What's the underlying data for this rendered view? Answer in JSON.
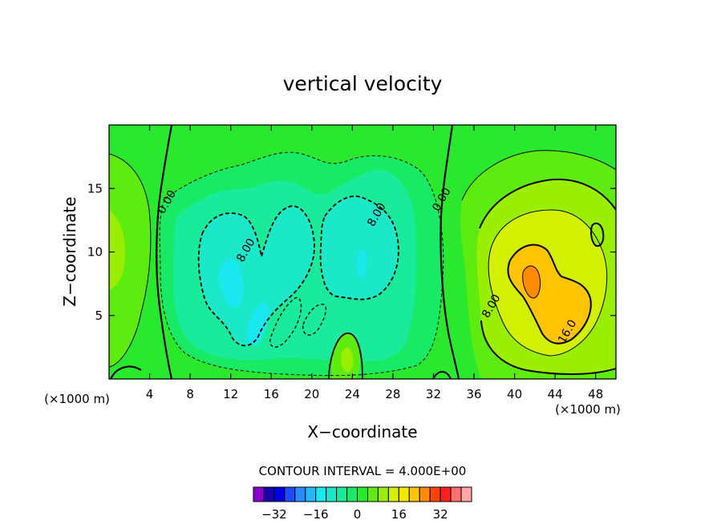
{
  "chart_data": {
    "type": "heatmap",
    "title": "vertical velocity",
    "xlabel": "X−coordinate",
    "ylabel": "Z−coordinate",
    "x_unit_left": "(×1000 m)",
    "x_unit_right": "(×1000 m)",
    "xlim": [
      0,
      50
    ],
    "ylim": [
      0,
      20
    ],
    "x_ticks": [
      4,
      8,
      12,
      16,
      20,
      24,
      28,
      32,
      36,
      40,
      44,
      48
    ],
    "y_ticks": [
      5,
      10,
      15
    ],
    "contour_interval_text": "CONTOUR INTERVAL = 4.000E+00",
    "contour_labels": [
      {
        "text": "0.00",
        "x": 6.0,
        "y": 13.8
      },
      {
        "text": "8.00",
        "x": 13.8,
        "y": 10.0
      },
      {
        "text": "8.00",
        "x": 26.7,
        "y": 12.8
      },
      {
        "text": "0.00",
        "x": 33.1,
        "y": 14.0
      },
      {
        "text": "8.00",
        "x": 38.0,
        "y": 5.6
      },
      {
        "text": "16.0",
        "x": 45.5,
        "y": 3.6
      }
    ],
    "colorbar": {
      "levels": [
        -36,
        -32,
        -28,
        -24,
        -20,
        -16,
        -12,
        -8,
        -4,
        0,
        4,
        8,
        12,
        16,
        20,
        24,
        28,
        32,
        36
      ],
      "colors": [
        "#8800cc",
        "#1a00b0",
        "#0000e6",
        "#1a4dff",
        "#2a8aff",
        "#22b8ff",
        "#1ae8f0",
        "#1ae8c8",
        "#19eb9a",
        "#18ea66",
        "#2ae82e",
        "#5eeb10",
        "#9aee00",
        "#d2f000",
        "#f5e600",
        "#ffc400",
        "#ff8c00",
        "#ff4400",
        "#ff2020",
        "#ff7070",
        "#ffa8a8"
      ],
      "tick_labels": [
        "−32",
        "−16",
        "0",
        "16",
        "32"
      ],
      "tick_values": [
        -32,
        -16,
        0,
        16,
        32
      ]
    }
  }
}
